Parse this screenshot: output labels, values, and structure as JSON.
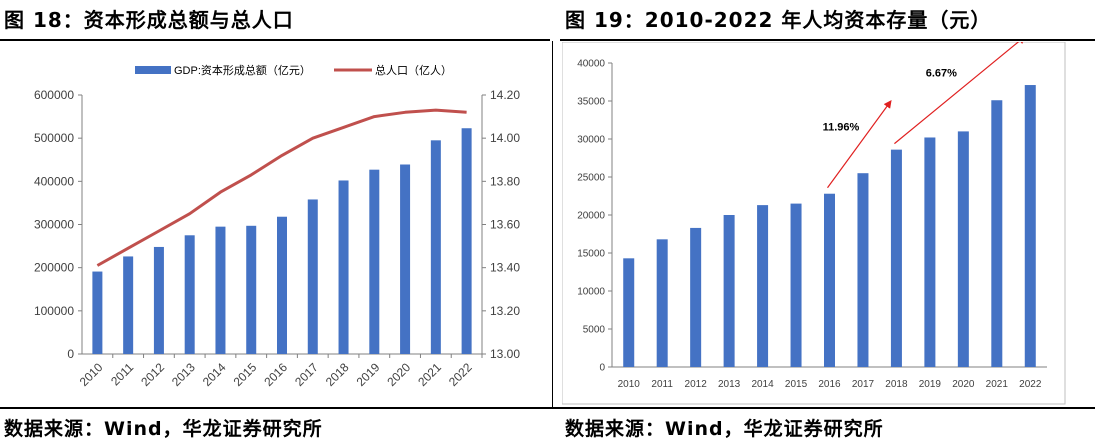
{
  "left": {
    "title": "图 18：资本形成总额与总人口",
    "source": "数据来源：Wind，华龙证券研究所"
  },
  "right": {
    "title": "图 19：2010-2022 年人均资本存量（元）",
    "source": "数据来源：Wind，华龙证券研究所"
  },
  "colors": {
    "bar": "#4472C4",
    "line": "#C0504D",
    "arrow": "#E02020"
  },
  "chart_data": [
    {
      "type": "bar",
      "categories": [
        "2010",
        "2011",
        "2012",
        "2013",
        "2014",
        "2015",
        "2016",
        "2017",
        "2018",
        "2019",
        "2020",
        "2021",
        "2022"
      ],
      "series": [
        {
          "name": "GDP:资本形成总额（亿元）",
          "type": "bar",
          "axis": "left",
          "values": [
            191000,
            226000,
            248000,
            275000,
            295000,
            297000,
            318000,
            358000,
            402000,
            427000,
            439000,
            495000,
            523000
          ]
        },
        {
          "name": "总人口（亿人）",
          "type": "line",
          "axis": "right",
          "values": [
            13.41,
            13.49,
            13.57,
            13.65,
            13.75,
            13.83,
            13.92,
            14.0,
            14.05,
            14.1,
            14.12,
            14.13,
            14.12
          ]
        }
      ],
      "ylim_left": [
        0,
        600000
      ],
      "yticks_left": [
        "0",
        "100000",
        "200000",
        "300000",
        "400000",
        "500000",
        "600000"
      ],
      "ylim_right": [
        13.0,
        14.2
      ],
      "yticks_right": [
        "13.00",
        "13.20",
        "13.40",
        "13.60",
        "13.80",
        "14.00",
        "14.20"
      ],
      "legend": "top",
      "grid": false
    },
    {
      "type": "bar",
      "categories": [
        "2010",
        "2011",
        "2012",
        "2013",
        "2014",
        "2015",
        "2016",
        "2017",
        "2018",
        "2019",
        "2020",
        "2021",
        "2022"
      ],
      "values": [
        14300,
        16800,
        18300,
        20000,
        21300,
        21500,
        22800,
        25500,
        28600,
        30200,
        31000,
        35100,
        37100
      ],
      "ylim": [
        0,
        40000
      ],
      "yticks": [
        "0",
        "5000",
        "10000",
        "15000",
        "20000",
        "25000",
        "30000",
        "35000",
        "40000"
      ],
      "annotations": [
        {
          "text": "11.96%",
          "from": "2016",
          "to": "2018"
        },
        {
          "text": "6.67%",
          "from": "2018",
          "to": "2022"
        }
      ],
      "grid": false
    }
  ]
}
